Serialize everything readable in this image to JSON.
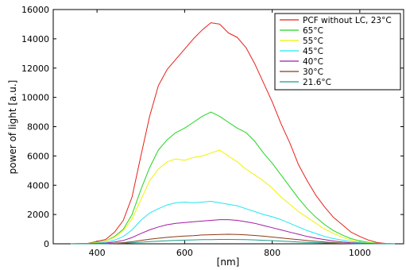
{
  "chart_data": {
    "type": "line",
    "xlabel": "[nm]",
    "ylabel": "power of light [a.u.]",
    "xlim": [
      300,
      1100
    ],
    "ylim": [
      0,
      16000
    ],
    "xticks": [
      400,
      600,
      800,
      1000
    ],
    "yticks": [
      0,
      2000,
      4000,
      6000,
      8000,
      10000,
      12000,
      14000,
      16000
    ],
    "grid": false,
    "legend_position": "top-right",
    "x": [
      340,
      380,
      420,
      440,
      460,
      480,
      500,
      520,
      540,
      560,
      580,
      600,
      620,
      640,
      660,
      680,
      700,
      720,
      740,
      760,
      780,
      800,
      820,
      840,
      860,
      880,
      900,
      920,
      940,
      960,
      980,
      1000,
      1020,
      1040,
      1060,
      1080
    ],
    "series": [
      {
        "name": "PCF without LC, 23°C",
        "color": "#e8201a",
        "values": [
          0,
          30,
          300,
          800,
          1600,
          3200,
          6000,
          8700,
          10800,
          11900,
          12600,
          13300,
          14000,
          14600,
          15100,
          15000,
          14400,
          14100,
          13400,
          12300,
          11000,
          9700,
          8200,
          6900,
          5400,
          4300,
          3300,
          2500,
          1800,
          1300,
          800,
          500,
          250,
          80,
          20,
          0
        ]
      },
      {
        "name": "65°C",
        "color": "#22d422",
        "values": [
          0,
          20,
          200,
          500,
          1000,
          2000,
          3700,
          5200,
          6400,
          7100,
          7600,
          7900,
          8300,
          8700,
          9000,
          8700,
          8300,
          7900,
          7600,
          7000,
          6200,
          5500,
          4700,
          3900,
          3100,
          2400,
          1800,
          1300,
          900,
          600,
          350,
          200,
          90,
          30,
          5,
          0
        ]
      },
      {
        "name": "55°C",
        "color": "#f2f200",
        "values": [
          0,
          15,
          180,
          450,
          900,
          1700,
          3000,
          4300,
          5100,
          5600,
          5800,
          5700,
          5900,
          6000,
          6200,
          6400,
          6000,
          5600,
          5100,
          4700,
          4300,
          3800,
          3200,
          2700,
          2200,
          1800,
          1400,
          1000,
          700,
          450,
          250,
          130,
          60,
          20,
          5,
          0
        ]
      },
      {
        "name": "45°C",
        "color": "#22e6f0",
        "values": [
          0,
          10,
          100,
          250,
          500,
          950,
          1600,
          2100,
          2400,
          2650,
          2800,
          2850,
          2800,
          2850,
          2900,
          2800,
          2700,
          2600,
          2400,
          2200,
          2000,
          1850,
          1650,
          1400,
          1150,
          900,
          700,
          500,
          350,
          250,
          150,
          80,
          40,
          15,
          5,
          0
        ]
      },
      {
        "name": "40°C",
        "color": "#a01ca0",
        "values": [
          0,
          5,
          50,
          120,
          230,
          430,
          700,
          950,
          1150,
          1300,
          1400,
          1450,
          1500,
          1550,
          1600,
          1650,
          1650,
          1600,
          1500,
          1400,
          1250,
          1100,
          950,
          800,
          650,
          500,
          380,
          280,
          190,
          120,
          70,
          40,
          20,
          8,
          2,
          0
        ]
      },
      {
        "name": "30°C",
        "color": "#8b3a18",
        "values": [
          0,
          2,
          15,
          40,
          80,
          140,
          230,
          310,
          380,
          440,
          490,
          530,
          560,
          600,
          620,
          640,
          650,
          640,
          610,
          570,
          520,
          460,
          400,
          340,
          280,
          220,
          170,
          120,
          80,
          50,
          30,
          15,
          8,
          3,
          1,
          0
        ]
      },
      {
        "name": "21.6°C",
        "color": "#1a9c8a",
        "values": [
          0,
          1,
          8,
          20,
          40,
          70,
          110,
          150,
          180,
          210,
          230,
          250,
          265,
          280,
          290,
          300,
          300,
          295,
          285,
          265,
          240,
          215,
          185,
          155,
          125,
          100,
          75,
          55,
          38,
          25,
          15,
          8,
          4,
          2,
          1,
          0
        ]
      }
    ]
  }
}
